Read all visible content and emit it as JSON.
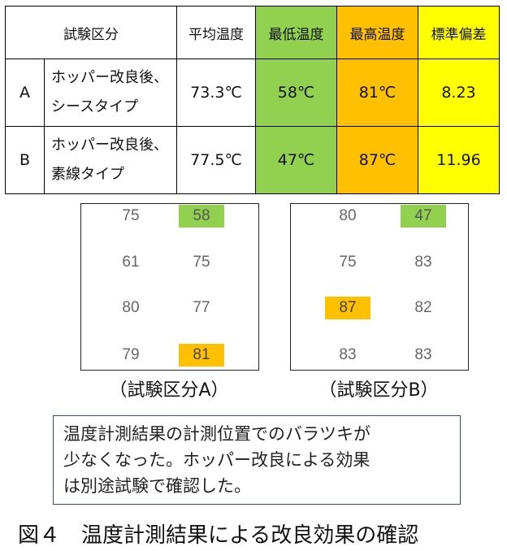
{
  "table": {
    "headers": {
      "category": "試験区分",
      "avg": "平均温度",
      "min": "最低温度",
      "max": "最高温度",
      "std": "標準偏差"
    },
    "rows": [
      {
        "id": "A",
        "desc_line1": "ホッパー改良後、",
        "desc_line2": "シースタイプ",
        "avg": "73.3℃",
        "min": "58℃",
        "max": "81℃",
        "std": "8.23"
      },
      {
        "id": "B",
        "desc_line1": "ホッパー改良後、",
        "desc_line2": "素線タイプ",
        "avg": "77.5℃",
        "min": "47℃",
        "max": "87℃",
        "std": "11.96"
      }
    ],
    "colors": {
      "min": "#92d050",
      "max": "#ffc000",
      "std": "#ffff00"
    }
  },
  "grid_a": {
    "caption": "（試験区分A）",
    "cells": [
      [
        "75",
        "58"
      ],
      [
        "61",
        "75"
      ],
      [
        "80",
        "77"
      ],
      [
        "79",
        "81"
      ]
    ]
  },
  "grid_b": {
    "caption": "（試験区分B）",
    "cells": [
      [
        "80",
        "47"
      ],
      [
        "75",
        "83"
      ],
      [
        "87",
        "82"
      ],
      [
        "83",
        "83"
      ]
    ]
  },
  "note": {
    "line1": "温度計測結果の計測位置でのバラツキが",
    "line2": "少なくなった。ホッパー改良による効果",
    "line3": "は別途試験で確認した。"
  },
  "figure_title": "図４　温度計測結果による改良効果の確認"
}
